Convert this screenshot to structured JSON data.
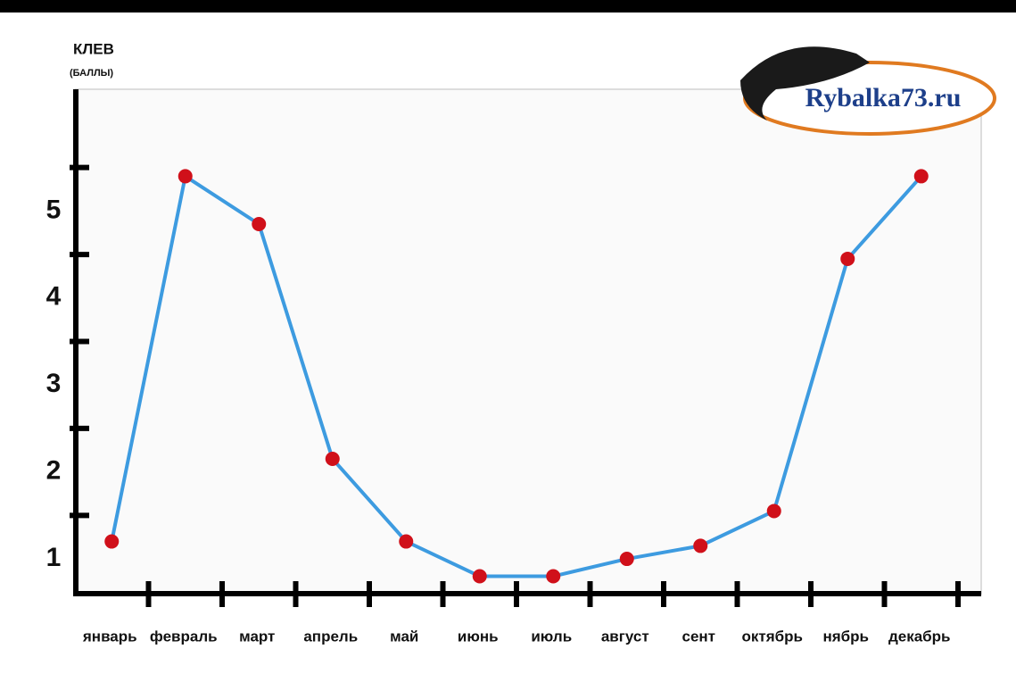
{
  "chart_data": {
    "type": "line",
    "y_label": "КЛЕВ",
    "y_label_sub": "(БАЛЛЫ)",
    "logo_text": "Rybalka73.ru",
    "categories": [
      "январь",
      "февраль",
      "март",
      "апрель",
      "май",
      "июнь",
      "июль",
      "август",
      "сент",
      "октябрь",
      "нябрь",
      "декабрь"
    ],
    "series": [
      {
        "name": "клев",
        "color": "#3d9be0",
        "marker_color": "#d0101a",
        "values": [
          1.2,
          5.4,
          4.85,
          2.15,
          1.2,
          0.8,
          0.8,
          1.0,
          1.15,
          1.55,
          4.45,
          5.4
        ]
      }
    ],
    "ylim": [
      0.6,
      6.4
    ],
    "yticks": [
      1,
      2,
      3,
      4,
      5
    ],
    "yticks_minor": [
      1.5,
      2.5,
      3.5,
      4.5,
      5.5
    ]
  }
}
